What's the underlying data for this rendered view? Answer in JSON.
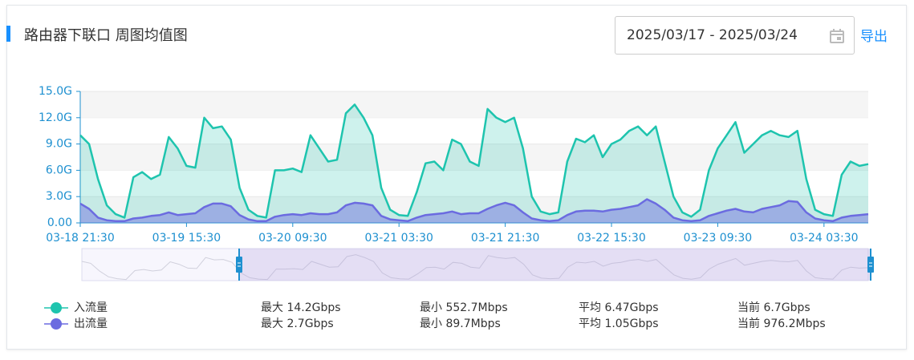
{
  "chart_data": {
    "type": "area",
    "title": "路由器下联口 周图均值图",
    "date_range": "2025/03/17 - 2025/03/24",
    "export_label": "导出",
    "categories": [
      "03-18 21:30",
      null,
      null,
      null,
      null,
      null,
      null,
      null,
      null,
      null,
      null,
      null,
      "03-19 15:30",
      null,
      null,
      null,
      null,
      null,
      null,
      null,
      null,
      null,
      null,
      null,
      "03-20 09:30",
      null,
      null,
      null,
      null,
      null,
      null,
      null,
      null,
      null,
      null,
      null,
      "03-21 03:30",
      null,
      null,
      null,
      null,
      null,
      null,
      null,
      null,
      null,
      null,
      null,
      "03-21 21:30",
      null,
      null,
      null,
      null,
      null,
      null,
      null,
      null,
      null,
      null,
      null,
      "03-22 15:30",
      null,
      null,
      null,
      null,
      null,
      null,
      null,
      null,
      null,
      null,
      null,
      "03-23 09:30",
      null,
      null,
      null,
      null,
      null,
      null,
      null,
      null,
      null,
      null,
      null,
      "03-24 03:30",
      null,
      null,
      null,
      null,
      null
    ],
    "series": [
      {
        "name": "入流量",
        "color": "#1ec4ae",
        "values": [
          10.0,
          9.0,
          5.0,
          2.0,
          1.0,
          0.6,
          5.2,
          5.8,
          5.0,
          5.5,
          9.8,
          8.5,
          6.5,
          6.3,
          12.0,
          10.8,
          11.0,
          9.5,
          4.0,
          1.5,
          0.8,
          0.6,
          6.0,
          6.0,
          6.2,
          5.8,
          10.0,
          8.5,
          7.0,
          7.2,
          12.5,
          13.5,
          12.0,
          10.0,
          4.0,
          1.5,
          0.9,
          0.8,
          3.5,
          6.8,
          7.0,
          6.0,
          9.5,
          9.0,
          7.0,
          6.5,
          13.0,
          12.0,
          11.5,
          12.0,
          8.5,
          3.0,
          1.3,
          1.0,
          1.2,
          7.0,
          9.6,
          9.2,
          10.0,
          7.5,
          9.0,
          9.5,
          10.5,
          11.0,
          10.0,
          11.0,
          7.0,
          3.0,
          1.2,
          0.7,
          1.5,
          6.0,
          8.5,
          10.0,
          11.5,
          8.0,
          9.0,
          10.0,
          10.5,
          10.0,
          9.8,
          10.5,
          5.0,
          1.5,
          1.0,
          0.8,
          5.5,
          7.0,
          6.5,
          6.7
        ],
        "stats": [
          "最大 14.2Gbps",
          "最小 552.7Mbps",
          "平均 6.47Gbps",
          "当前 6.7Gbps"
        ]
      },
      {
        "name": "出流量",
        "color": "#6b6be0",
        "values": [
          2.2,
          1.6,
          0.6,
          0.3,
          0.2,
          0.2,
          0.5,
          0.6,
          0.8,
          0.9,
          1.2,
          0.9,
          1.0,
          1.1,
          1.8,
          2.2,
          2.2,
          1.9,
          0.9,
          0.4,
          0.2,
          0.2,
          0.7,
          0.9,
          1.0,
          0.9,
          1.1,
          1.0,
          1.0,
          1.2,
          2.0,
          2.3,
          2.2,
          2.0,
          0.8,
          0.4,
          0.3,
          0.2,
          0.6,
          0.9,
          1.0,
          1.1,
          1.3,
          1.0,
          1.1,
          1.1,
          1.6,
          2.0,
          2.3,
          2.0,
          1.2,
          0.5,
          0.3,
          0.2,
          0.3,
          0.9,
          1.3,
          1.4,
          1.4,
          1.3,
          1.5,
          1.6,
          1.8,
          2.0,
          2.7,
          2.2,
          1.5,
          0.6,
          0.3,
          0.2,
          0.3,
          0.8,
          1.1,
          1.4,
          1.6,
          1.3,
          1.2,
          1.6,
          1.8,
          2.0,
          2.5,
          2.4,
          1.2,
          0.5,
          0.3,
          0.2,
          0.6,
          0.8,
          0.9,
          1.0
        ],
        "stats": [
          "最大 2.7Gbps",
          "最小 89.7Mbps",
          "平均 1.05Gbps",
          "当前 976.2Mbps"
        ]
      }
    ],
    "ylim": [
      0,
      15
    ],
    "yticks": [
      {
        "value": 0,
        "label": "0.00"
      },
      {
        "value": 3,
        "label": "3.0G"
      },
      {
        "value": 6,
        "label": "6.0G"
      },
      {
        "value": 9,
        "label": "9.0G"
      },
      {
        "value": 12,
        "label": "12.0G"
      },
      {
        "value": 15,
        "label": "15.0G"
      }
    ],
    "grid": true
  }
}
